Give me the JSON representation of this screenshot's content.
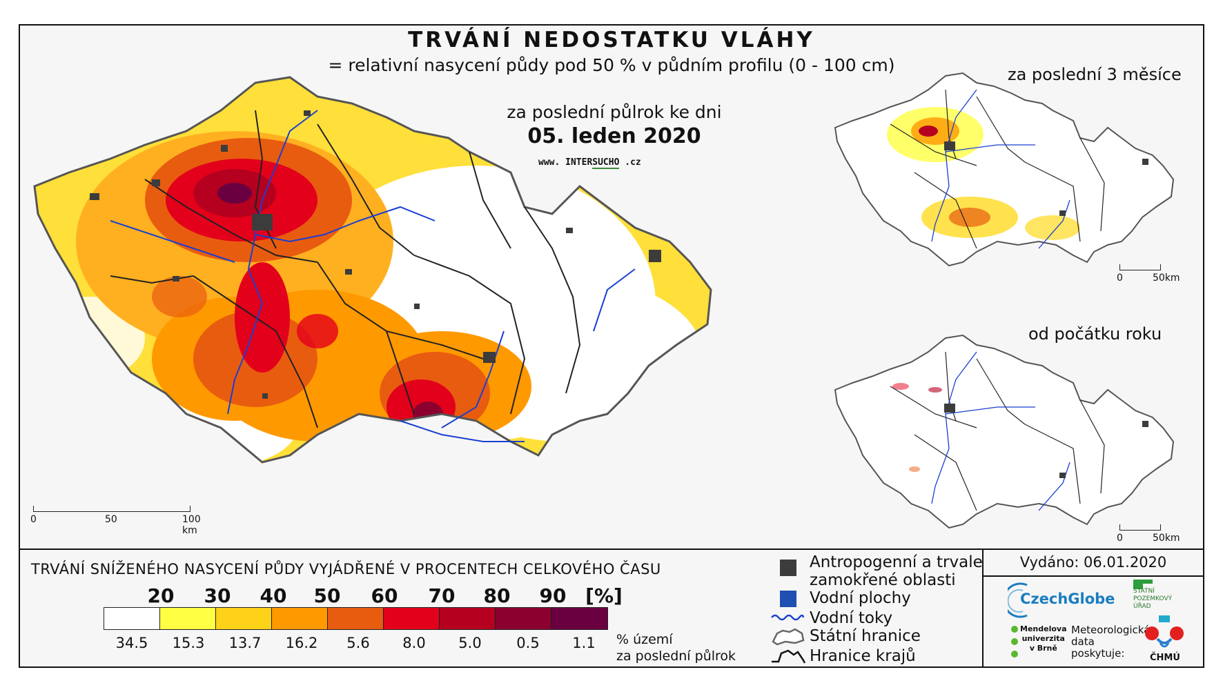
{
  "title": "TRVÁNÍ NEDOSTATKU VLÁHY",
  "subtitle": "= relativní nasycení půdy pod 50 % v půdním profilu (0 - 100 cm)",
  "main_map": {
    "period_label": "za poslední půlrok ke dni",
    "date": "05. leden 2020",
    "website_prefix": "www.",
    "website_inter": "INTER",
    "website_sucho": "SUCHO",
    "website_suffix": ".cz",
    "scale": {
      "s0": "0",
      "s1": "50",
      "s2": "100 km"
    }
  },
  "inset_3m": {
    "label": "za poslední 3 měsíce",
    "scale0": "0",
    "scale1": "50km"
  },
  "inset_ytd": {
    "label": "od počátku roku",
    "scale0": "0",
    "scale1": "50km"
  },
  "legend": {
    "title": "TRVÁNÍ SNÍŽENÉHO NASYCENÍ PŮDY VYJÁDŘENÉ V PROCENTECH CELKOVÉHO ČASU",
    "thresholds": [
      "20",
      "30",
      "40",
      "50",
      "60",
      "70",
      "80",
      "90",
      "[%]"
    ],
    "colors": [
      "#ffffff",
      "#ffff44",
      "#ffd21a",
      "#ff9900",
      "#e85c10",
      "#e3001b",
      "#b5001f",
      "#8c0030",
      "#6a0040"
    ],
    "percents": [
      "34.5",
      "15.3",
      "13.7",
      "16.2",
      "5.6",
      "8.0",
      "5.0",
      "0.5",
      "1.1"
    ],
    "percent_note_1": "% území",
    "percent_note_2": "za poslední půlrok"
  },
  "symbols": {
    "anthropogenic_1": "Antropogenní a trvale",
    "anthropogenic_2": "zamokřené oblasti",
    "water_bodies": "Vodní plochy",
    "rivers": "Vodní toky",
    "state_border": "Státní hranice",
    "regions": "Hranice krajů",
    "colors": {
      "anthropogenic": "#3c3c3c",
      "water": "#1f4fb0",
      "river": "#1a3fd0"
    }
  },
  "issued": "Vydáno: 06.01.2020",
  "logos": {
    "czechglobe": "CzechGlobe",
    "spu_1": "STÁTNÍ",
    "spu_2": "POZEMKOVÝ",
    "spu_3": "ÚŘAD",
    "mendel_1": "Mendelova",
    "mendel_2": "univerzita",
    "mendel_3": "v Brně",
    "chmi_1": "Meteorologická",
    "chmi_2": "data",
    "chmi_3": "poskytuje:",
    "chmu": "ČHMÚ"
  }
}
